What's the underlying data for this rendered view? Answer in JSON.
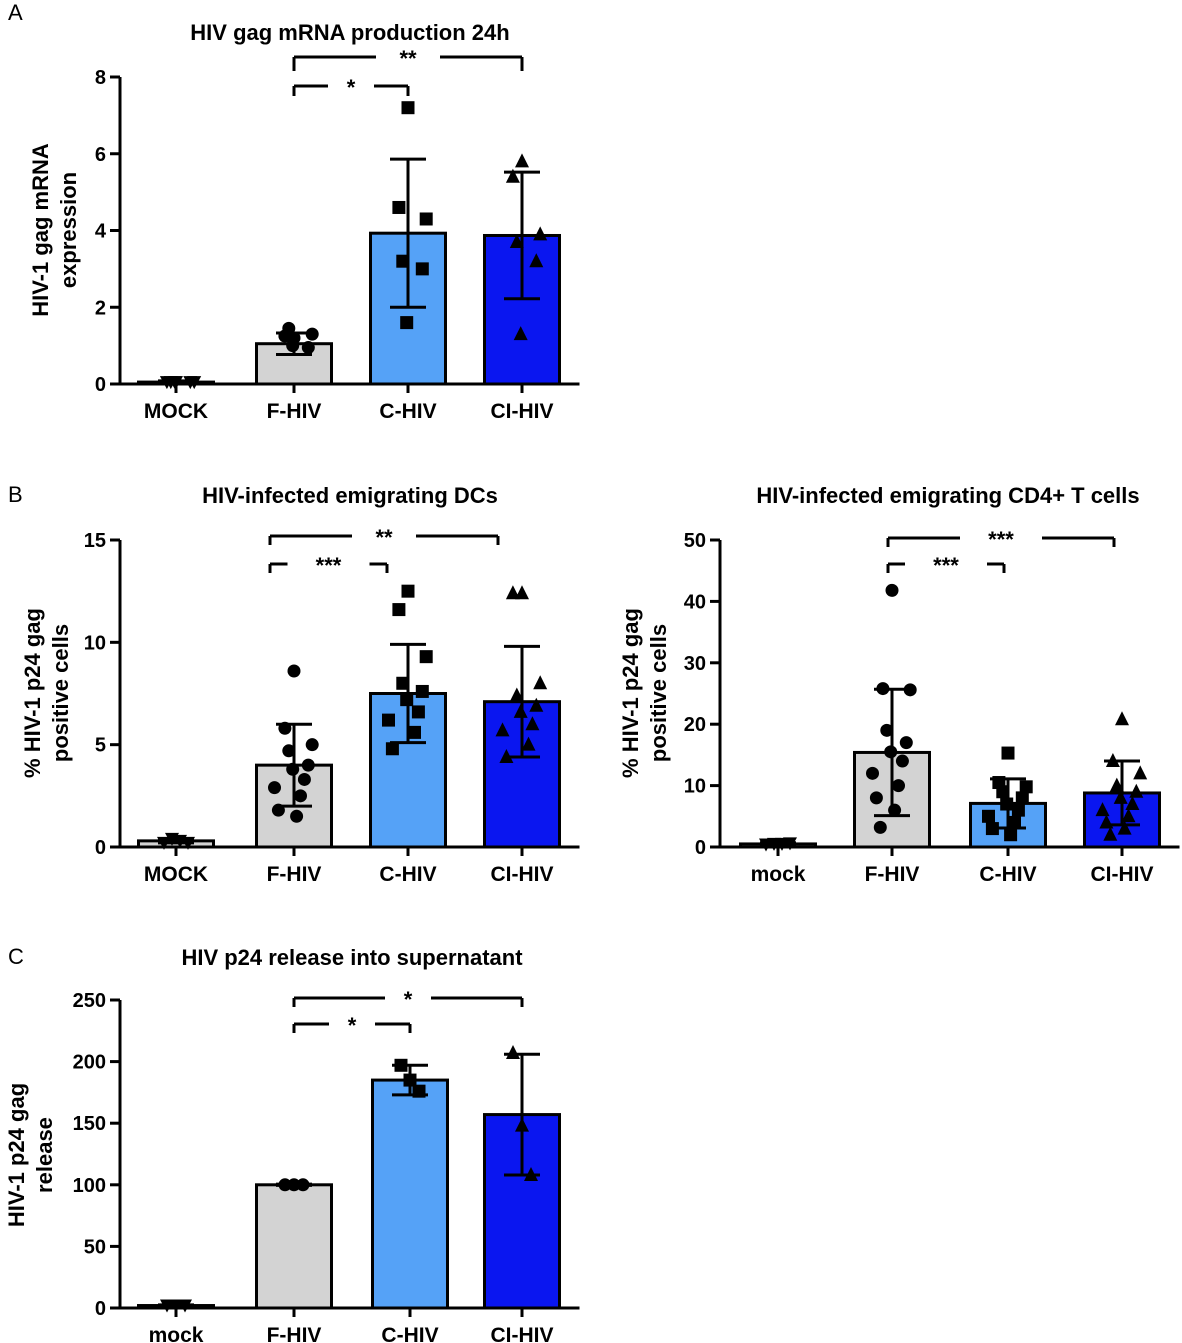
{
  "chart_data": [
    {
      "panel": "A",
      "type": "bar",
      "title": "HIV gag mRNA production 24h",
      "ylabel": [
        "HIV-1 gag mRNA",
        "expression"
      ],
      "ylim": [
        0,
        8
      ],
      "yticks": [
        0,
        2,
        4,
        6,
        8
      ],
      "categories": [
        "MOCK",
        "F-HIV",
        "C-HIV",
        "CI-HIV"
      ],
      "colors": [
        "#d3d3d3",
        "#d3d3d3",
        "#55a2f7",
        "#0a16f0"
      ],
      "markers": [
        "tri-down",
        "circle",
        "square",
        "tri-up"
      ],
      "values": [
        0.05,
        1.05,
        3.93,
        3.87
      ],
      "errors": [
        0.03,
        0.28,
        1.93,
        1.65
      ],
      "points": [
        [
          0.05,
          0.05,
          0.05,
          0.05,
          0.05,
          0.05
        ],
        [
          1.2,
          1.25,
          1.3,
          1.45,
          0.95,
          1.0
        ],
        [
          7.2,
          4.6,
          4.3,
          3.2,
          3.0,
          1.6
        ],
        [
          5.8,
          5.4,
          3.9,
          3.7,
          3.2,
          1.3
        ]
      ],
      "significance": [
        {
          "from": 1,
          "to": 2,
          "label": "*"
        },
        {
          "from": 1,
          "to": 3,
          "label": "**"
        }
      ]
    },
    {
      "panel": "B",
      "type": "bar",
      "title": "HIV-infected emigrating DCs",
      "ylabel": [
        "% HIV-1 p24 gag",
        "positive cells"
      ],
      "ylim": [
        0,
        15
      ],
      "yticks": [
        0,
        5,
        10,
        15
      ],
      "categories": [
        "MOCK",
        "F-HIV",
        "C-HIV",
        "CI-HIV"
      ],
      "colors": [
        "#d3d3d3",
        "#d3d3d3",
        "#55a2f7",
        "#0a16f0"
      ],
      "markers": [
        "tri-down",
        "circle",
        "square",
        "tri-up"
      ],
      "values": [
        0.3,
        4.0,
        7.5,
        7.1
      ],
      "errors": [
        0.1,
        2.0,
        2.4,
        2.7
      ],
      "points": [
        [
          0.2,
          0.4,
          0.3,
          0.2
        ],
        [
          8.6,
          5.8,
          5.0,
          4.7,
          4.0,
          3.8,
          3.3,
          2.9,
          2.5,
          1.8,
          1.5
        ],
        [
          12.5,
          11.6,
          9.3,
          8.0,
          7.6,
          7.2,
          6.6,
          6.2,
          5.6,
          4.8
        ],
        [
          12.4,
          12.4,
          8.0,
          7.4,
          6.9,
          6.6,
          6.0,
          5.7,
          5.0,
          4.4
        ]
      ],
      "significance": [
        {
          "from": 1,
          "to": 2,
          "label": "***"
        },
        {
          "from": 1,
          "to": 3,
          "label": "**"
        }
      ]
    },
    {
      "panel": "",
      "type": "bar",
      "title": "HIV-infected emigrating CD4+ T cells",
      "ylabel": [
        "% HIV-1 p24 gag",
        "positive cells"
      ],
      "ylim": [
        0,
        50
      ],
      "yticks": [
        0,
        10,
        20,
        30,
        40,
        50
      ],
      "categories": [
        "mock",
        "F-HIV",
        "C-HIV",
        "CI-HIV"
      ],
      "colors": [
        "#d3d3d3",
        "#d3d3d3",
        "#55a2f7",
        "#0a16f0"
      ],
      "markers": [
        "tri-down",
        "circle",
        "square",
        "tri-up"
      ],
      "values": [
        0.5,
        15.4,
        7.1,
        8.8
      ],
      "errors": [
        0.2,
        10.3,
        4.0,
        5.2
      ],
      "points": [
        [
          0.4,
          0.5,
          0.5,
          0.6
        ],
        [
          41.8,
          25.8,
          25.6,
          19.0,
          17.0,
          15.5,
          14.0,
          12.0,
          10.0,
          8.0,
          6.0,
          3.2
        ],
        [
          15.3,
          10.5,
          9.8,
          9.0,
          8.0,
          7.0,
          6.0,
          5.0,
          4.0,
          3.0,
          2.0
        ],
        [
          20.8,
          14.0,
          12.0,
          10.0,
          9.0,
          8.0,
          7.0,
          6.0,
          5.0,
          4.0,
          3.0,
          2.0
        ]
      ],
      "significance": [
        {
          "from": 1,
          "to": 2,
          "label": "***"
        },
        {
          "from": 1,
          "to": 3,
          "label": "***"
        }
      ]
    },
    {
      "panel": "C",
      "type": "bar",
      "title": "HIV p24 release into supernatant",
      "ylabel": [
        "HIV-1 p24 gag",
        "release"
      ],
      "ylim": [
        0,
        250
      ],
      "yticks": [
        0,
        50,
        100,
        150,
        200,
        250
      ],
      "categories": [
        "mock",
        "F-HIV",
        "C-HIV",
        "CI-HIV"
      ],
      "colors": [
        "#d3d3d3",
        "#d3d3d3",
        "#55a2f7",
        "#0a16f0"
      ],
      "markers": [
        "tri-down",
        "circle",
        "square",
        "tri-up"
      ],
      "values": [
        2,
        100,
        185,
        157
      ],
      "errors": [
        0.5,
        0.5,
        12,
        49
      ],
      "points": [
        [
          2,
          2,
          2
        ],
        [
          100,
          100,
          100
        ],
        [
          197,
          185,
          176
        ],
        [
          207,
          148,
          108
        ]
      ],
      "significance": [
        {
          "from": 1,
          "to": 2,
          "label": "*"
        },
        {
          "from": 1,
          "to": 3,
          "label": "*"
        }
      ]
    }
  ]
}
